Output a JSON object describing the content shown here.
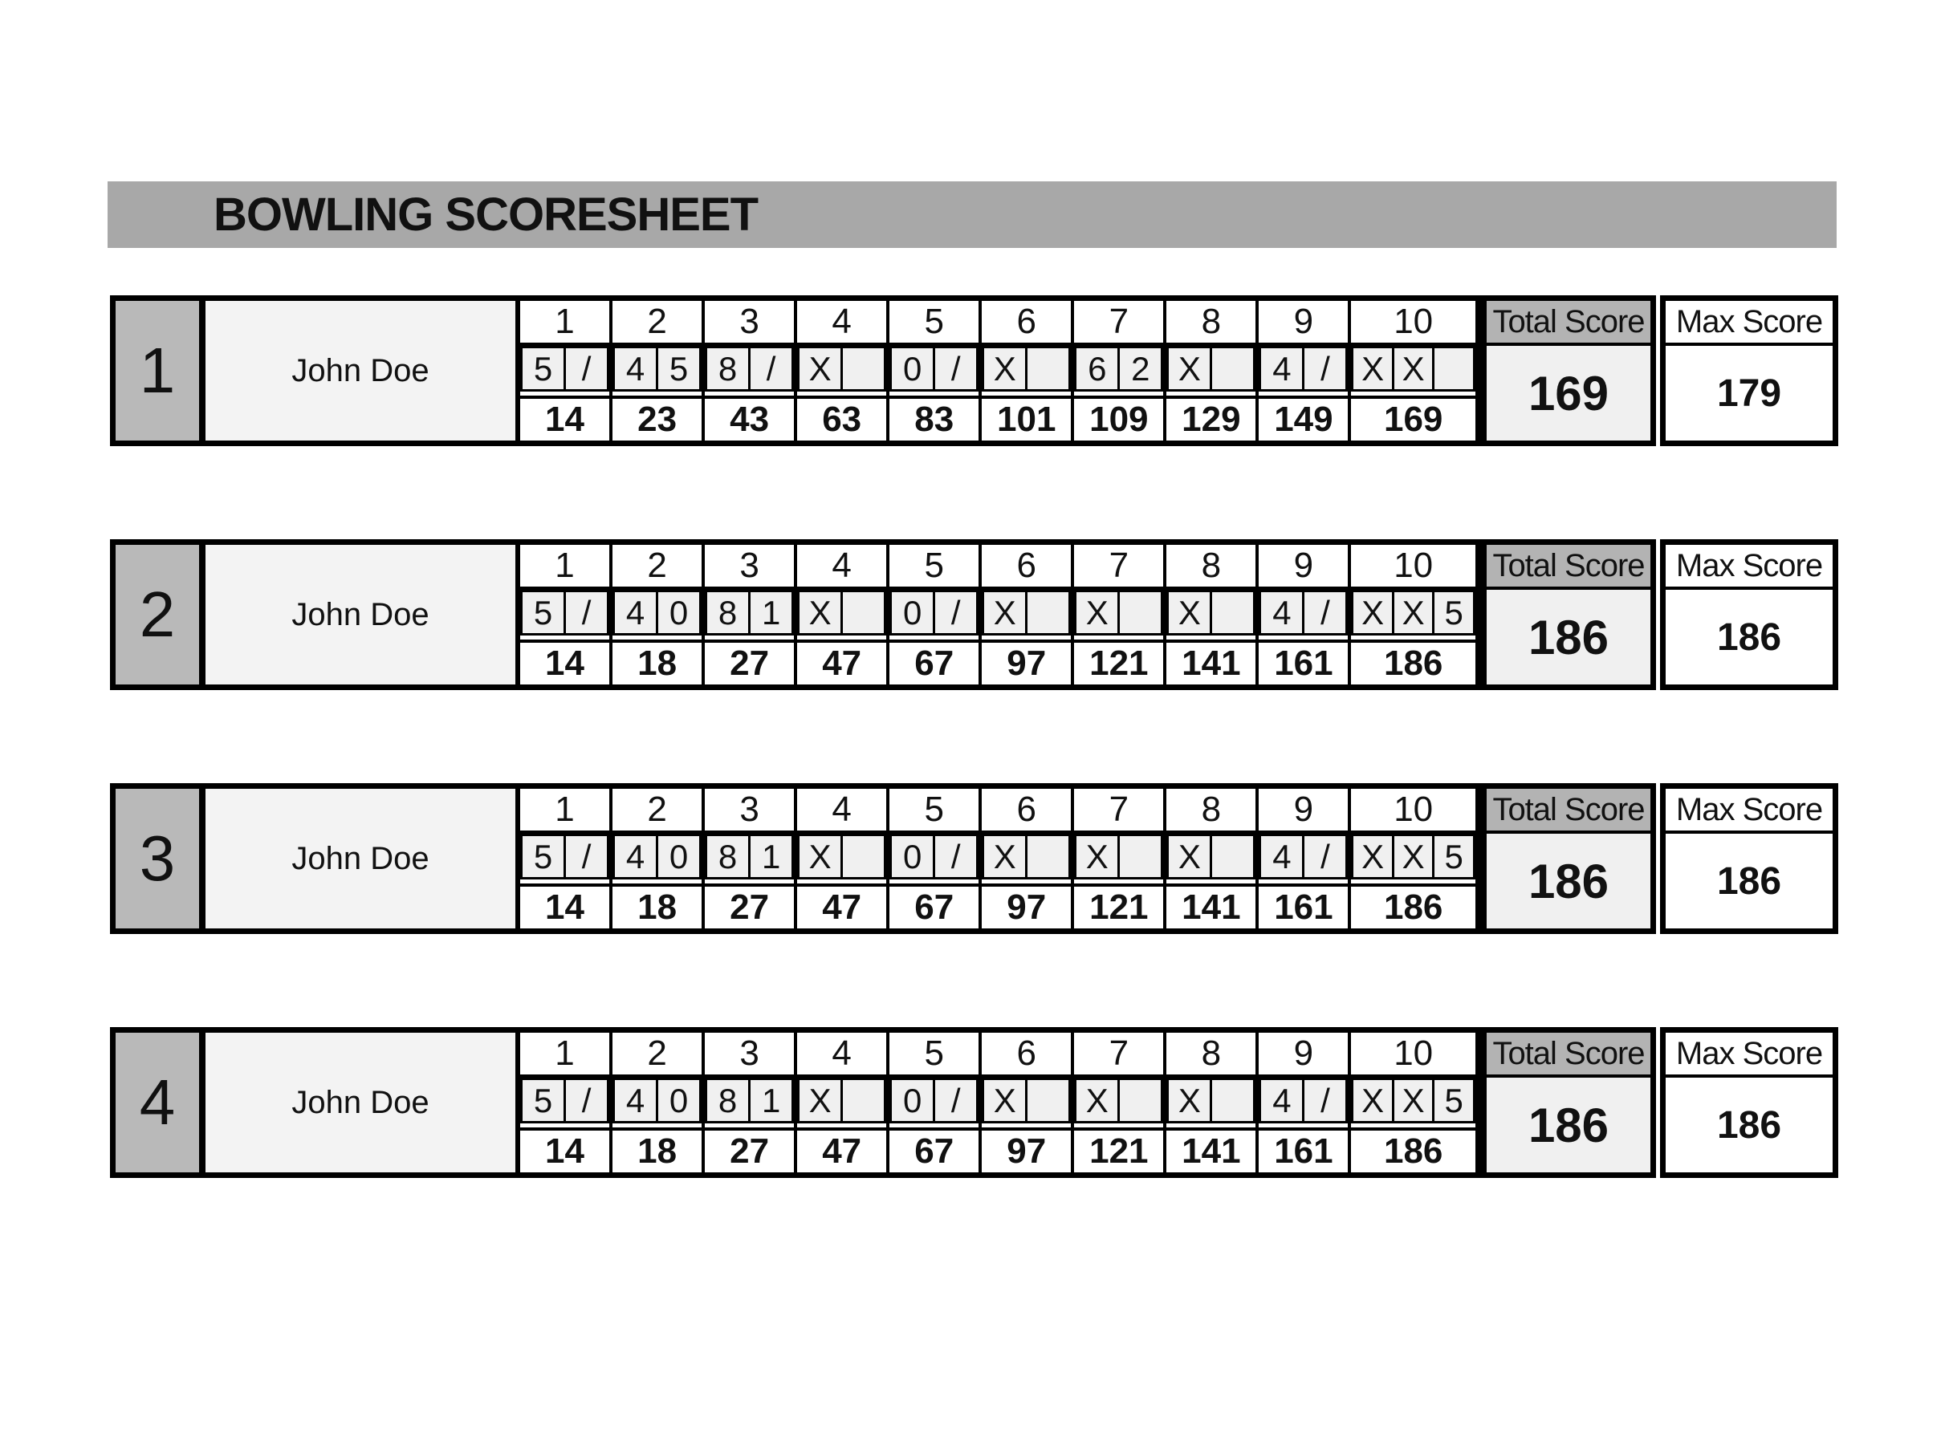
{
  "title": "BOWLING SCORESHEET",
  "frame_headers": [
    "1",
    "2",
    "3",
    "4",
    "5",
    "6",
    "7",
    "8",
    "9",
    "10"
  ],
  "columns": {
    "total_label": "Total Score",
    "max_label": "Max Score"
  },
  "games": [
    {
      "number": "1",
      "player": "John Doe",
      "frames": [
        {
          "throws": [
            "5",
            "/"
          ],
          "cum": "14"
        },
        {
          "throws": [
            "4",
            "5"
          ],
          "cum": "23"
        },
        {
          "throws": [
            "8",
            "/"
          ],
          "cum": "43"
        },
        {
          "throws": [
            "X",
            ""
          ],
          "cum": "63"
        },
        {
          "throws": [
            "0",
            "/"
          ],
          "cum": "83"
        },
        {
          "throws": [
            "X",
            ""
          ],
          "cum": "101"
        },
        {
          "throws": [
            "6",
            "2"
          ],
          "cum": "109"
        },
        {
          "throws": [
            "X",
            ""
          ],
          "cum": "129"
        },
        {
          "throws": [
            "4",
            "/"
          ],
          "cum": "149"
        },
        {
          "throws": [
            "X",
            "X",
            ""
          ],
          "cum": "169"
        }
      ],
      "total": "169",
      "max": "179"
    },
    {
      "number": "2",
      "player": "John Doe",
      "frames": [
        {
          "throws": [
            "5",
            "/"
          ],
          "cum": "14"
        },
        {
          "throws": [
            "4",
            "0"
          ],
          "cum": "18"
        },
        {
          "throws": [
            "8",
            "1"
          ],
          "cum": "27"
        },
        {
          "throws": [
            "X",
            ""
          ],
          "cum": "47"
        },
        {
          "throws": [
            "0",
            "/"
          ],
          "cum": "67"
        },
        {
          "throws": [
            "X",
            ""
          ],
          "cum": "97"
        },
        {
          "throws": [
            "X",
            ""
          ],
          "cum": "121"
        },
        {
          "throws": [
            "X",
            ""
          ],
          "cum": "141"
        },
        {
          "throws": [
            "4",
            "/"
          ],
          "cum": "161"
        },
        {
          "throws": [
            "X",
            "X",
            "5"
          ],
          "cum": "186"
        }
      ],
      "total": "186",
      "max": "186"
    },
    {
      "number": "3",
      "player": "John Doe",
      "frames": [
        {
          "throws": [
            "5",
            "/"
          ],
          "cum": "14"
        },
        {
          "throws": [
            "4",
            "0"
          ],
          "cum": "18"
        },
        {
          "throws": [
            "8",
            "1"
          ],
          "cum": "27"
        },
        {
          "throws": [
            "X",
            ""
          ],
          "cum": "47"
        },
        {
          "throws": [
            "0",
            "/"
          ],
          "cum": "67"
        },
        {
          "throws": [
            "X",
            ""
          ],
          "cum": "97"
        },
        {
          "throws": [
            "X",
            ""
          ],
          "cum": "121"
        },
        {
          "throws": [
            "X",
            ""
          ],
          "cum": "141"
        },
        {
          "throws": [
            "4",
            "/"
          ],
          "cum": "161"
        },
        {
          "throws": [
            "X",
            "X",
            "5"
          ],
          "cum": "186"
        }
      ],
      "total": "186",
      "max": "186"
    },
    {
      "number": "4",
      "player": "John Doe",
      "frames": [
        {
          "throws": [
            "5",
            "/"
          ],
          "cum": "14"
        },
        {
          "throws": [
            "4",
            "0"
          ],
          "cum": "18"
        },
        {
          "throws": [
            "8",
            "1"
          ],
          "cum": "27"
        },
        {
          "throws": [
            "X",
            ""
          ],
          "cum": "47"
        },
        {
          "throws": [
            "0",
            "/"
          ],
          "cum": "67"
        },
        {
          "throws": [
            "X",
            ""
          ],
          "cum": "97"
        },
        {
          "throws": [
            "X",
            ""
          ],
          "cum": "121"
        },
        {
          "throws": [
            "X",
            ""
          ],
          "cum": "141"
        },
        {
          "throws": [
            "4",
            "/"
          ],
          "cum": "161"
        },
        {
          "throws": [
            "X",
            "X",
            "5"
          ],
          "cum": "186"
        }
      ],
      "total": "186",
      "max": "186"
    }
  ],
  "colors": {
    "title_bar_bg": "#a8a8a8",
    "game_number_bg": "#b9b9b9",
    "name_bg": "#f3f3f3",
    "throw_box_bg": "#f0f0f0",
    "total_header_bg": "#b3b3b3",
    "total_value_bg": "#f0f0f0",
    "border_color": "#000000"
  }
}
